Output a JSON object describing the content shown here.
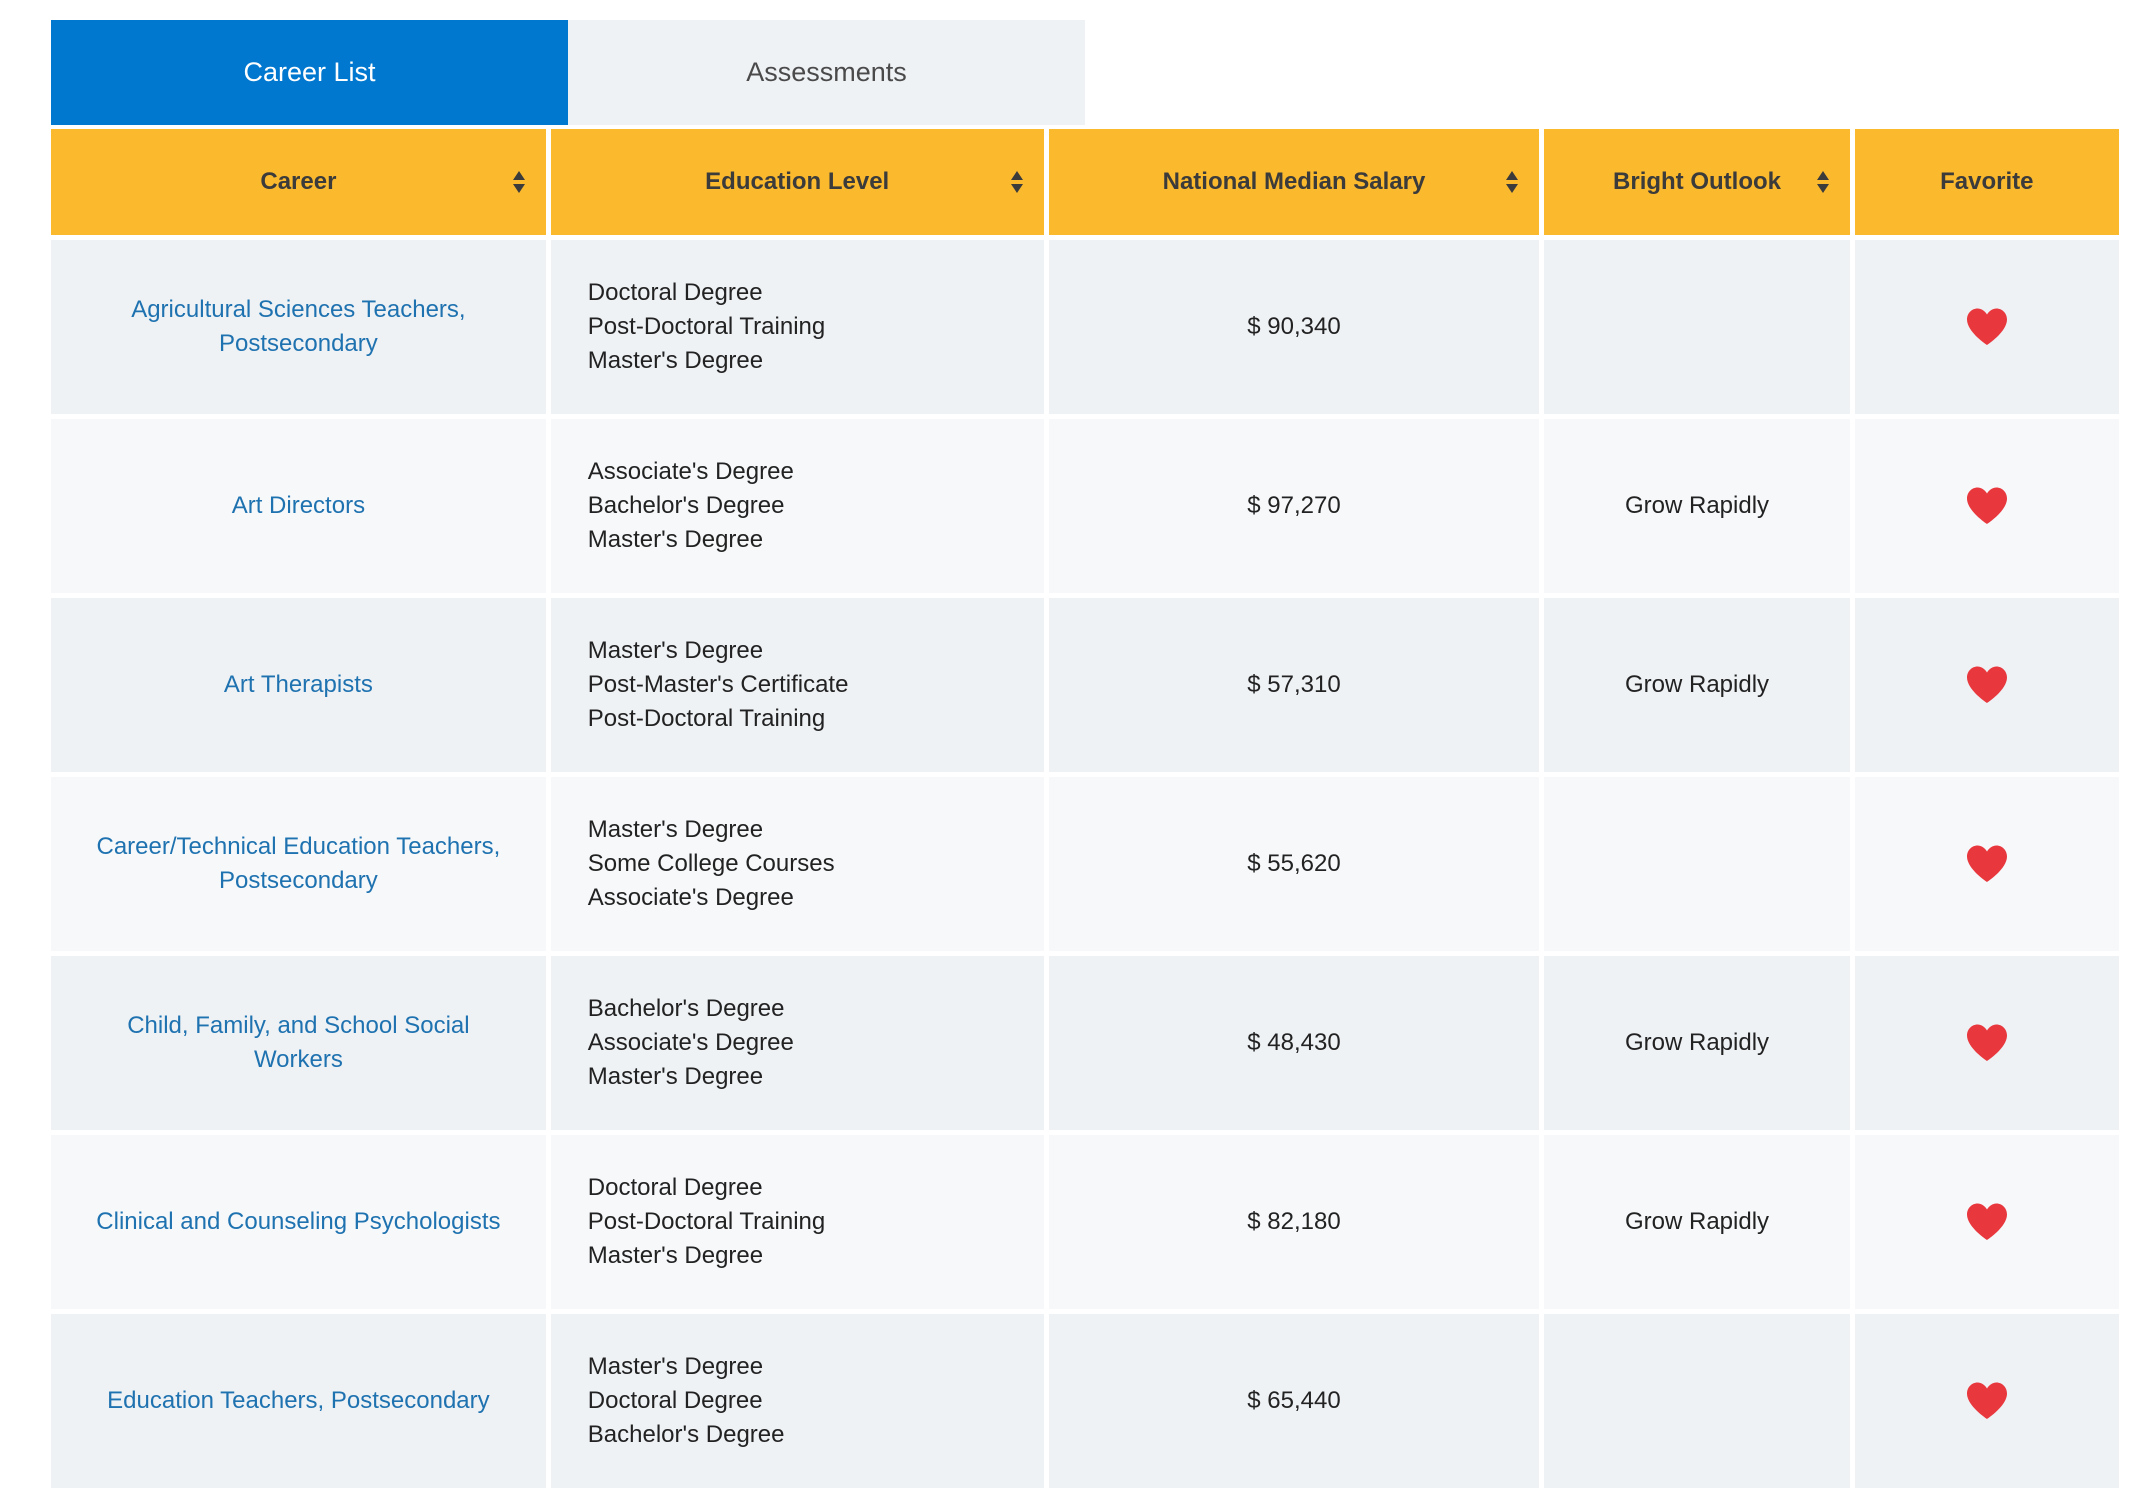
{
  "tabs": [
    {
      "label": "Career List",
      "active": true
    },
    {
      "label": "Assessments",
      "active": false
    }
  ],
  "colors": {
    "active_tab": "#0078cf",
    "header": "#fbb92e",
    "link": "#1f72b0",
    "heart": "#e8383d"
  },
  "table": {
    "headers": [
      "Career",
      "Education Level",
      "National Median Salary",
      "Bright Outlook",
      "Favorite"
    ],
    "rows": [
      {
        "career": "Agricultural Sciences Teachers, Postsecondary",
        "education": [
          "Doctoral Degree",
          "Post-Doctoral Training",
          "Master's Degree"
        ],
        "salary": "$ 90,340",
        "outlook": "",
        "favorite_icon": "heart-icon"
      },
      {
        "career": "Art Directors",
        "education": [
          "Associate's Degree",
          "Bachelor's Degree",
          "Master's Degree"
        ],
        "salary": "$ 97,270",
        "outlook": "Grow Rapidly",
        "favorite_icon": "heart-icon"
      },
      {
        "career": "Art Therapists",
        "education": [
          "Master's Degree",
          "Post-Master's Certificate",
          "Post-Doctoral Training"
        ],
        "salary": "$ 57,310",
        "outlook": "Grow Rapidly",
        "favorite_icon": "heart-icon"
      },
      {
        "career": "Career/Technical Education Teachers, Postsecondary",
        "education": [
          "Master's Degree",
          "Some College Courses",
          "Associate's Degree"
        ],
        "salary": "$ 55,620",
        "outlook": "",
        "favorite_icon": "heart-icon"
      },
      {
        "career": "Child, Family, and School Social Workers",
        "education": [
          "Bachelor's Degree",
          "Associate's Degree",
          "Master's Degree"
        ],
        "salary": "$ 48,430",
        "outlook": "Grow Rapidly",
        "favorite_icon": "heart-icon"
      },
      {
        "career": "Clinical and Counseling Psychologists",
        "education": [
          "Doctoral Degree",
          "Post-Doctoral Training",
          "Master's Degree"
        ],
        "salary": "$ 82,180",
        "outlook": "Grow Rapidly",
        "favorite_icon": "heart-icon"
      },
      {
        "career": "Education Teachers, Postsecondary",
        "education": [
          "Master's Degree",
          "Doctoral Degree",
          "Bachelor's Degree"
        ],
        "salary": "$ 65,440",
        "outlook": "",
        "favorite_icon": "heart-icon"
      }
    ]
  }
}
